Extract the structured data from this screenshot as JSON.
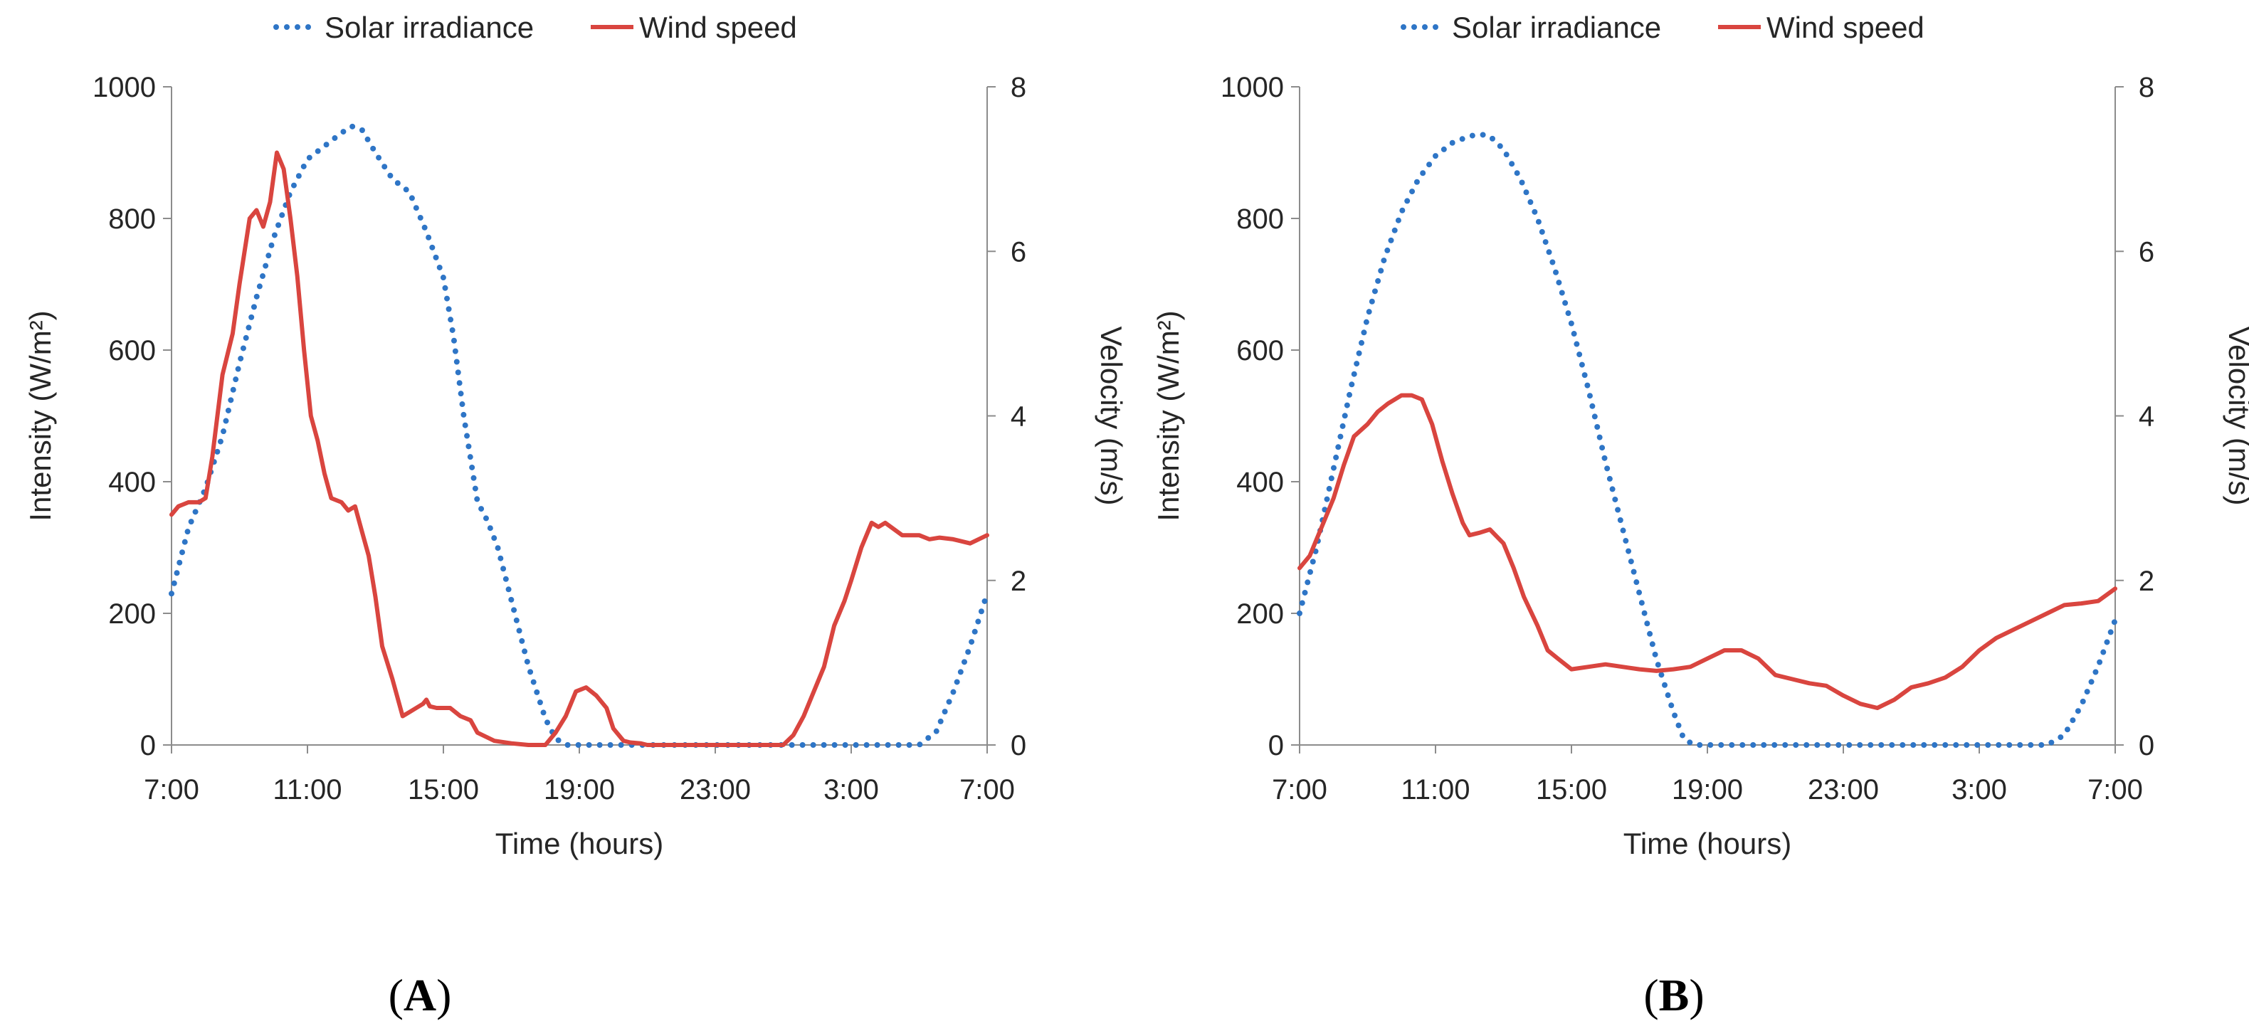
{
  "colors": {
    "solar": "#2E75C6",
    "wind": "#D9453F",
    "axis": "#8C8C8C",
    "text": "#262626"
  },
  "chart_data": [
    {
      "type": "line",
      "panel_label": "A",
      "xlabel": "Time (hours)",
      "ylabel_left": "Intensity (W/m²)",
      "ylabel_right": "Velocity (m/s)",
      "x_range_hours": [
        0,
        24
      ],
      "x_ticks": [
        {
          "h": 0,
          "label": "7:00"
        },
        {
          "h": 4,
          "label": "11:00"
        },
        {
          "h": 8,
          "label": "15:00"
        },
        {
          "h": 12,
          "label": "19:00"
        },
        {
          "h": 16,
          "label": "23:00"
        },
        {
          "h": 20,
          "label": "3:00"
        },
        {
          "h": 24,
          "label": "7:00"
        }
      ],
      "ylim_left": [
        0,
        1000
      ],
      "y_ticks_left": [
        "0",
        "200",
        "400",
        "600",
        "800",
        "1000"
      ],
      "ylim_right": [
        0,
        8
      ],
      "y_ticks_right": [
        "0",
        "2",
        "4",
        "6",
        "8"
      ],
      "legend": [
        "Solar irradiance",
        "Wind speed"
      ],
      "series": [
        {
          "name": "Solar irradiance",
          "axis": "left",
          "style": "dotted",
          "x": [
            0,
            0.5,
            1,
            1.5,
            2,
            2.5,
            3,
            3.5,
            4,
            4.5,
            5,
            5.3,
            5.6,
            6,
            6.5,
            7,
            7.5,
            8,
            8.3,
            8.6,
            9,
            9.3,
            9.6,
            10,
            10.5,
            11,
            11.3,
            11.6,
            12,
            14,
            16,
            18,
            20,
            22,
            22.5,
            23,
            23.5,
            24
          ],
          "values": [
            230,
            330,
            390,
            470,
            580,
            680,
            770,
            840,
            890,
            910,
            930,
            940,
            935,
            900,
            860,
            840,
            780,
            710,
            620,
            500,
            370,
            340,
            300,
            220,
            120,
            40,
            10,
            0,
            0,
            0,
            0,
            0,
            0,
            0,
            20,
            80,
            150,
            230
          ]
        },
        {
          "name": "Wind speed",
          "axis": "right",
          "style": "solid",
          "x": [
            0,
            0.2,
            0.5,
            0.8,
            1,
            1.2,
            1.5,
            1.8,
            2,
            2.3,
            2.5,
            2.7,
            2.9,
            3.1,
            3.3,
            3.5,
            3.7,
            3.9,
            4.1,
            4.3,
            4.5,
            4.7,
            5,
            5.2,
            5.4,
            5.6,
            5.8,
            6,
            6.2,
            6.5,
            6.8,
            7,
            7.2,
            7.4,
            7.5,
            7.6,
            7.8,
            8,
            8.2,
            8.5,
            8.8,
            9,
            9.5,
            10,
            10.5,
            11,
            11.3,
            11.6,
            11.9,
            12.2,
            12.5,
            12.8,
            13,
            13.3,
            13.5,
            13.8,
            14,
            14.2,
            14.5,
            15,
            16,
            17,
            18,
            18.3,
            18.6,
            18.9,
            19.2,
            19.5,
            19.8,
            20,
            20.3,
            20.6,
            20.8,
            21,
            21.5,
            22,
            22.3,
            22.6,
            23,
            23.5,
            24
          ],
          "values": [
            2.8,
            2.9,
            2.95,
            2.95,
            3.0,
            3.5,
            4.5,
            5.0,
            5.6,
            6.4,
            6.5,
            6.3,
            6.6,
            7.2,
            7.0,
            6.4,
            5.7,
            4.8,
            4.0,
            3.7,
            3.3,
            3.0,
            2.95,
            2.85,
            2.9,
            2.6,
            2.3,
            1.8,
            1.2,
            0.8,
            0.35,
            0.4,
            0.45,
            0.5,
            0.55,
            0.47,
            0.45,
            0.45,
            0.45,
            0.35,
            0.3,
            0.15,
            0.05,
            0.02,
            0.0,
            0.0,
            0.15,
            0.35,
            0.65,
            0.7,
            0.6,
            0.45,
            0.2,
            0.05,
            0.03,
            0.02,
            0.0,
            0.0,
            0.0,
            0.0,
            0.0,
            0.0,
            0.0,
            0.12,
            0.35,
            0.65,
            0.95,
            1.45,
            1.75,
            2.0,
            2.4,
            2.7,
            2.65,
            2.7,
            2.55,
            2.55,
            2.5,
            2.52,
            2.5,
            2.45,
            2.55
          ]
        }
      ]
    },
    {
      "type": "line",
      "panel_label": "B",
      "xlabel": "Time (hours)",
      "ylabel_left": "Intensity (W/m²)",
      "ylabel_right": "Velocity (m/s)",
      "x_range_hours": [
        0,
        24
      ],
      "x_ticks": [
        {
          "h": 0,
          "label": "7:00"
        },
        {
          "h": 4,
          "label": "11:00"
        },
        {
          "h": 8,
          "label": "15:00"
        },
        {
          "h": 12,
          "label": "19:00"
        },
        {
          "h": 16,
          "label": "23:00"
        },
        {
          "h": 20,
          "label": "3:00"
        },
        {
          "h": 24,
          "label": "7:00"
        }
      ],
      "ylim_left": [
        0,
        1000
      ],
      "y_ticks_left": [
        "0",
        "200",
        "400",
        "600",
        "800",
        "1000"
      ],
      "ylim_right": [
        0,
        8
      ],
      "y_ticks_right": [
        "0",
        "2",
        "4",
        "6",
        "8"
      ],
      "legend": [
        "Solar irradiance",
        "Wind speed"
      ],
      "series": [
        {
          "name": "Solar irradiance",
          "axis": "left",
          "style": "dotted",
          "x": [
            0,
            0.5,
            1,
            1.5,
            2,
            2.5,
            3,
            3.5,
            4,
            4.5,
            5,
            5.3,
            5.6,
            6,
            6.5,
            7,
            7.5,
            8,
            8.5,
            9,
            9.5,
            10,
            10.5,
            11,
            11.3,
            11.6,
            12,
            14,
            16,
            18,
            20,
            22,
            22.5,
            23,
            23.5,
            24
          ],
          "values": [
            200,
            300,
            420,
            540,
            650,
            740,
            810,
            860,
            895,
            915,
            925,
            928,
            925,
            905,
            860,
            800,
            725,
            640,
            540,
            430,
            330,
            230,
            130,
            50,
            10,
            0,
            0,
            0,
            0,
            0,
            0,
            0,
            15,
            60,
            120,
            190
          ]
        },
        {
          "name": "Wind speed",
          "axis": "right",
          "style": "solid",
          "x": [
            0,
            0.3,
            0.6,
            1,
            1.3,
            1.6,
            2,
            2.3,
            2.6,
            3,
            3.3,
            3.6,
            3.9,
            4.2,
            4.5,
            4.8,
            5,
            5.3,
            5.6,
            6,
            6.3,
            6.6,
            7,
            7.3,
            7.6,
            8,
            8.5,
            9,
            9.5,
            10,
            10.5,
            11,
            11.5,
            12,
            12.5,
            13,
            13.5,
            14,
            14.5,
            15,
            15.5,
            16,
            16.5,
            17,
            17.5,
            18,
            18.5,
            19,
            19.5,
            20,
            20.5,
            21,
            21.5,
            22,
            22.5,
            23,
            23.5,
            24
          ],
          "values": [
            2.15,
            2.3,
            2.6,
            3.0,
            3.4,
            3.75,
            3.9,
            4.05,
            4.15,
            4.25,
            4.25,
            4.2,
            3.9,
            3.45,
            3.05,
            2.7,
            2.55,
            2.58,
            2.62,
            2.45,
            2.15,
            1.8,
            1.45,
            1.15,
            1.05,
            0.92,
            0.95,
            0.98,
            0.95,
            0.92,
            0.9,
            0.92,
            0.95,
            1.05,
            1.15,
            1.15,
            1.05,
            0.85,
            0.8,
            0.75,
            0.72,
            0.6,
            0.5,
            0.45,
            0.55,
            0.7,
            0.75,
            0.82,
            0.95,
            1.15,
            1.3,
            1.4,
            1.5,
            1.6,
            1.7,
            1.72,
            1.75,
            1.9
          ]
        }
      ]
    }
  ]
}
